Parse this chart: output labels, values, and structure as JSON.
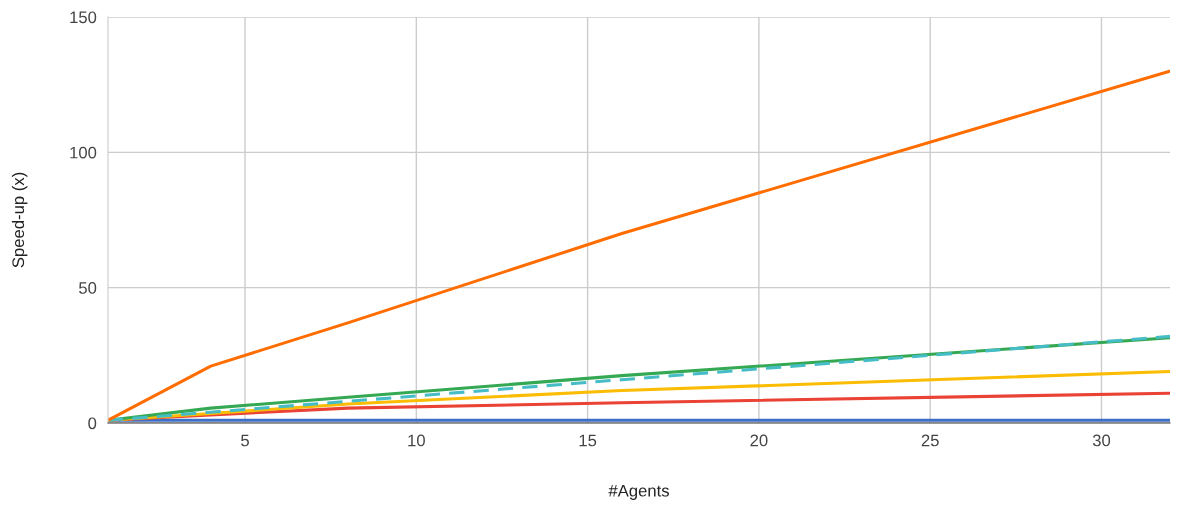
{
  "chart_data": {
    "type": "line",
    "xlabel": "#Agents",
    "ylabel": "Speed-up (x)",
    "x": [
      1,
      4,
      8,
      16,
      32
    ],
    "series": [
      {
        "color": "#3c6fc8",
        "values": [
          1,
          1,
          1,
          1,
          1
        ]
      },
      {
        "color": "#ea4335",
        "values": [
          1,
          3,
          5.5,
          7.5,
          11
        ]
      },
      {
        "color": "#fbbc04",
        "values": [
          1,
          3.5,
          7,
          12,
          19
        ]
      },
      {
        "color": "#34a853",
        "values": [
          1,
          5.5,
          9.5,
          17.5,
          31.5
        ]
      },
      {
        "color": "#46bdc6",
        "line_style": "dashed",
        "values": [
          1,
          4,
          8,
          16,
          32
        ]
      },
      {
        "color": "#ff6d01",
        "values": [
          1,
          21,
          37,
          70,
          130
        ]
      }
    ],
    "xlim": [
      1,
      32
    ],
    "xticks": [
      5,
      10,
      15,
      20,
      25,
      30
    ],
    "ylim": [
      0,
      150
    ],
    "yticks": [
      0,
      50,
      100,
      150
    ],
    "grid": true,
    "line_style": "solid",
    "marker": "none"
  }
}
